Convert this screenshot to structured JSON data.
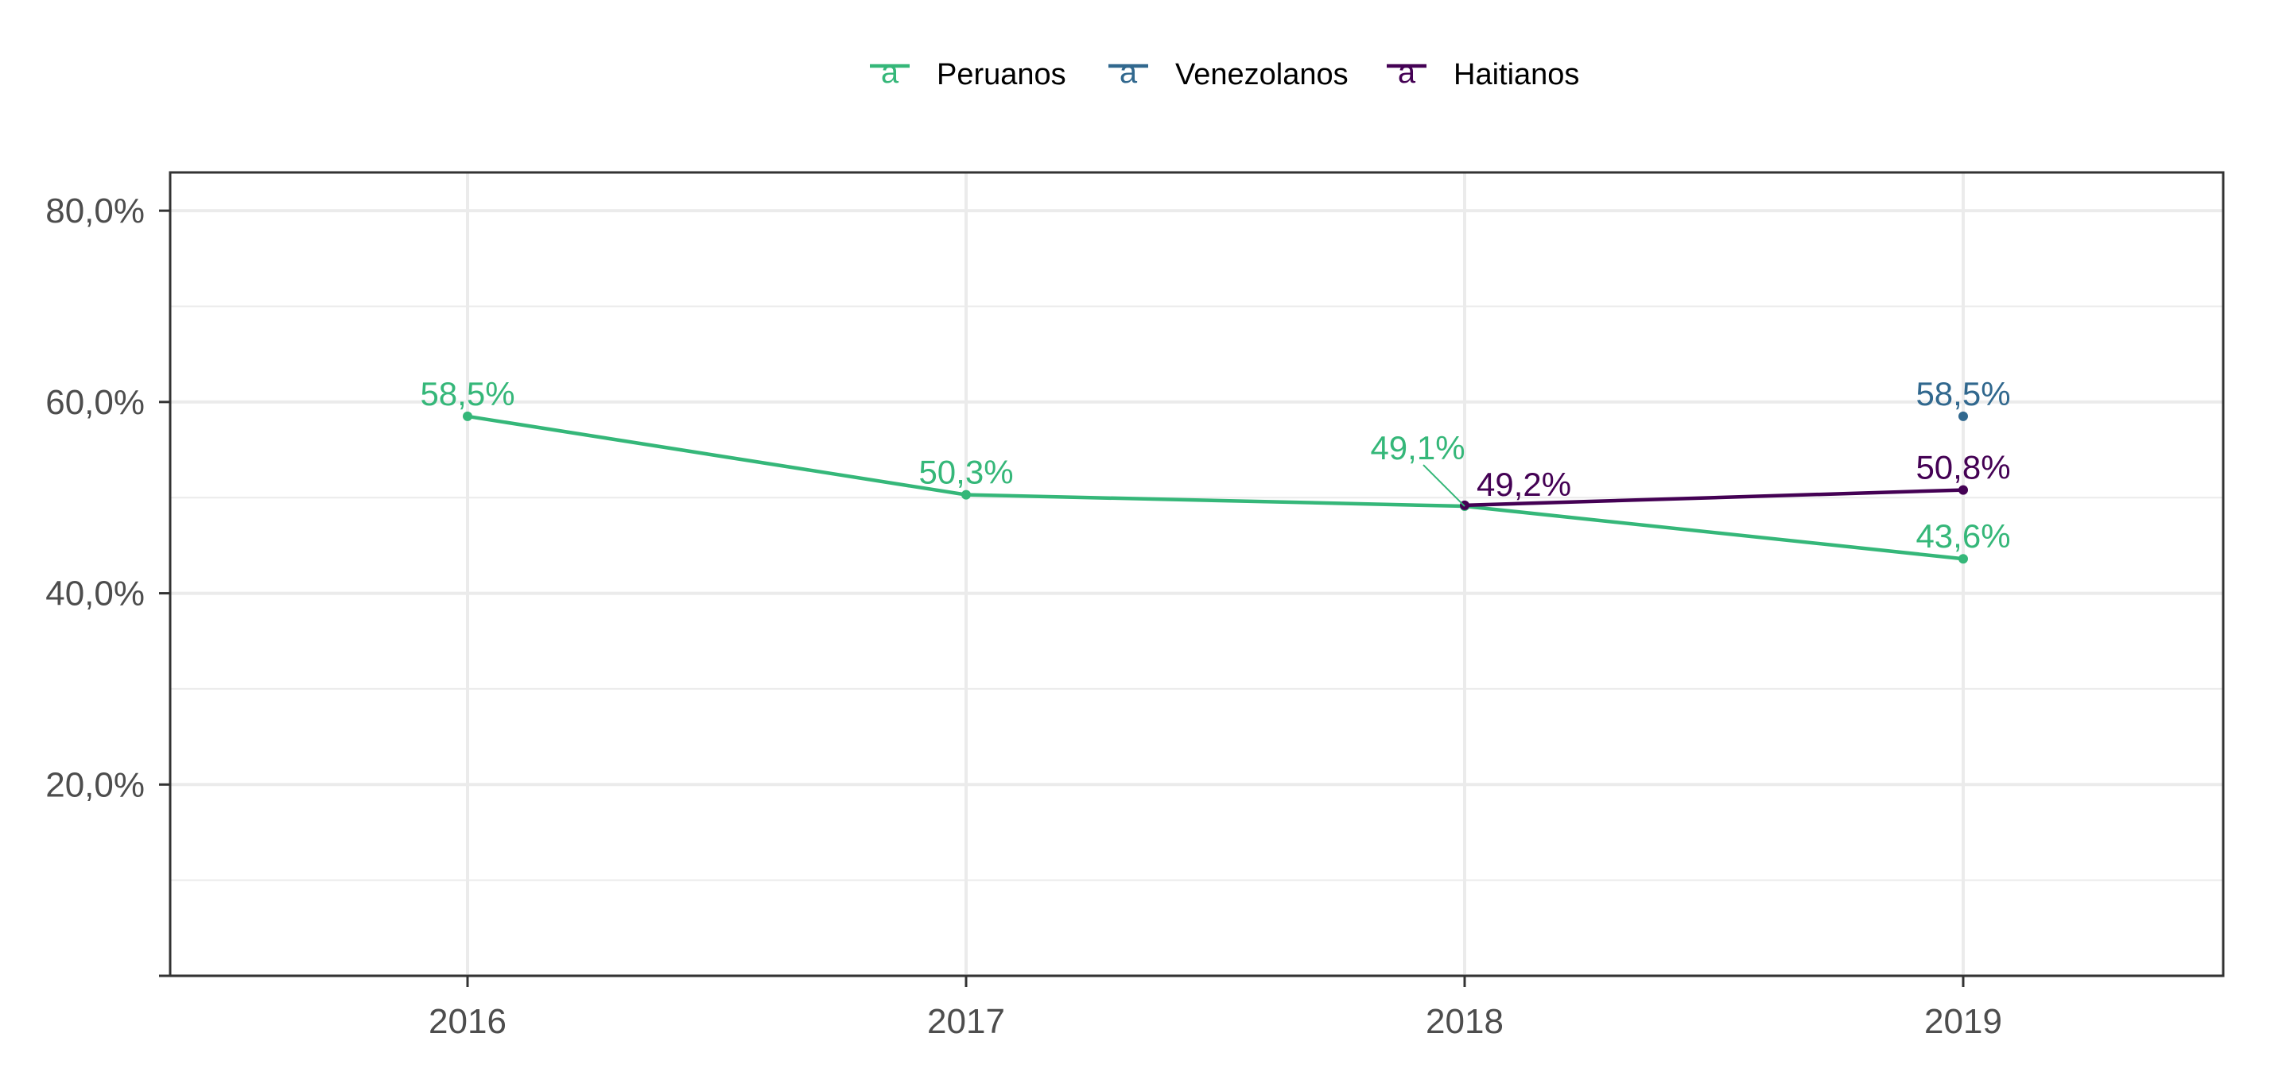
{
  "chart_data": {
    "type": "line",
    "x": [
      "2016",
      "2017",
      "2018",
      "2019"
    ],
    "ylim": [
      0,
      0.84
    ],
    "yticks": [
      0,
      0.2,
      0.4,
      0.6,
      0.8
    ],
    "ytick_labels": [
      "",
      "20,0%",
      "40,0%",
      "60,0%",
      "80,0%"
    ],
    "grid": true,
    "legend_position": "top",
    "legend_key_glyph": "a",
    "series": [
      {
        "name": "Peruanos",
        "color": "#35b779",
        "points": [
          {
            "x": "2016",
            "y": 0.585,
            "label": "58,5%"
          },
          {
            "x": "2017",
            "y": 0.503,
            "label": "50,3%"
          },
          {
            "x": "2018",
            "y": 0.491,
            "label": "49,1%"
          },
          {
            "x": "2019",
            "y": 0.436,
            "label": "43,6%"
          }
        ]
      },
      {
        "name": "Venezolanos",
        "color": "#31688e",
        "points": [
          {
            "x": "2019",
            "y": 0.585,
            "label": "58,5%"
          }
        ]
      },
      {
        "name": "Haitianos",
        "color": "#440154",
        "points": [
          {
            "x": "2018",
            "y": 0.492,
            "label": "49,2%"
          },
          {
            "x": "2019",
            "y": 0.508,
            "label": "50,8%"
          }
        ]
      }
    ]
  }
}
